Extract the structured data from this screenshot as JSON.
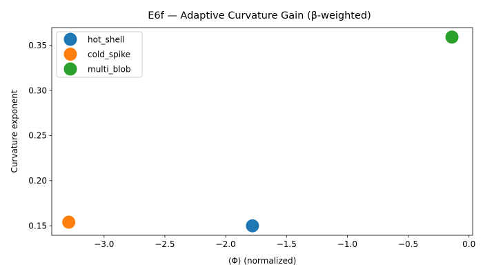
{
  "chart_data": {
    "type": "scatter",
    "title": "E6f — Adaptive Curvature Gain (β-weighted)",
    "xlabel": "⟨Φ⟩ (normalized)",
    "ylabel": "Curvature exponent",
    "xlim": [
      -3.43,
      0.03
    ],
    "ylim": [
      0.1395,
      0.3695
    ],
    "xticks": [
      -3.0,
      -2.5,
      -2.0,
      -1.5,
      -1.0,
      -0.5,
      0.0
    ],
    "xtick_labels": [
      "−3.0",
      "−2.5",
      "−2.0",
      "−1.5",
      "−1.0",
      "−0.5",
      "0.0"
    ],
    "yticks": [
      0.15,
      0.2,
      0.25,
      0.3,
      0.35
    ],
    "ytick_labels": [
      "0.15",
      "0.20",
      "0.25",
      "0.30",
      "0.35"
    ],
    "grid": false,
    "legend_position": "top-left",
    "series": [
      {
        "name": "hot_shell",
        "color": "#1f77b4",
        "points": [
          {
            "x": -1.78,
            "y": 0.15
          }
        ]
      },
      {
        "name": "cold_spike",
        "color": "#ff7f0e",
        "points": [
          {
            "x": -3.29,
            "y": 0.154
          }
        ]
      },
      {
        "name": "multi_blob",
        "color": "#2ca02c",
        "points": [
          {
            "x": -0.14,
            "y": 0.359
          }
        ]
      }
    ]
  }
}
